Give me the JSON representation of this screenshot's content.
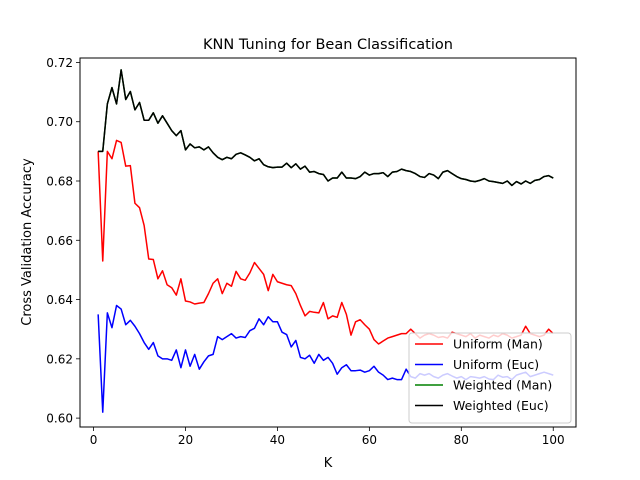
{
  "chart_data": {
    "type": "line",
    "title": "KNN Tuning for Bean Classification",
    "xlabel": "K",
    "ylabel": "Cross Validation Accuracy",
    "xlim": [
      -2.95,
      104.95
    ],
    "ylim": [
      0.597,
      0.7215
    ],
    "xticks": [
      0,
      20,
      40,
      60,
      80,
      100
    ],
    "yticks": [
      0.6,
      0.62,
      0.64,
      0.66,
      0.68,
      0.7,
      0.72
    ],
    "xtick_labels": [
      "0",
      "20",
      "40",
      "60",
      "80",
      "100"
    ],
    "ytick_labels": [
      "0.60",
      "0.62",
      "0.64",
      "0.66",
      "0.68",
      "0.70",
      "0.72"
    ],
    "grid": false,
    "legend_position": "lower-right",
    "x": [
      1,
      2,
      3,
      4,
      5,
      6,
      7,
      8,
      9,
      10,
      11,
      12,
      13,
      14,
      15,
      16,
      17,
      18,
      19,
      20,
      21,
      22,
      23,
      24,
      25,
      26,
      27,
      28,
      29,
      30,
      31,
      32,
      33,
      34,
      35,
      36,
      37,
      38,
      39,
      40,
      41,
      42,
      43,
      44,
      45,
      46,
      47,
      48,
      49,
      50,
      51,
      52,
      53,
      54,
      55,
      56,
      57,
      58,
      59,
      60,
      61,
      62,
      63,
      64,
      65,
      66,
      67,
      68,
      69,
      70,
      71,
      72,
      73,
      74,
      75,
      76,
      77,
      78,
      79,
      80,
      81,
      82,
      83,
      84,
      85,
      86,
      87,
      88,
      89,
      90,
      91,
      92,
      93,
      94,
      95,
      96,
      97,
      98,
      99,
      100
    ],
    "series": [
      {
        "name": "Uniform (Man)",
        "color": "#ff0000",
        "values": [
          0.69,
          0.653,
          0.69,
          0.6875,
          0.6937,
          0.693,
          0.685,
          0.6852,
          0.6725,
          0.671,
          0.665,
          0.6537,
          0.6535,
          0.647,
          0.6497,
          0.645,
          0.644,
          0.6415,
          0.647,
          0.6395,
          0.6392,
          0.6385,
          0.6388,
          0.639,
          0.642,
          0.6455,
          0.647,
          0.642,
          0.6455,
          0.6445,
          0.6495,
          0.647,
          0.6465,
          0.649,
          0.6525,
          0.6505,
          0.6485,
          0.643,
          0.6485,
          0.646,
          0.6455,
          0.645,
          0.6447,
          0.642,
          0.638,
          0.6345,
          0.636,
          0.6357,
          0.6355,
          0.639,
          0.6335,
          0.6345,
          0.634,
          0.639,
          0.635,
          0.628,
          0.6325,
          0.6332,
          0.6315,
          0.63,
          0.6265,
          0.625,
          0.626,
          0.627,
          0.6275,
          0.628,
          0.6285,
          0.6285,
          0.63,
          0.6285,
          0.627,
          0.628,
          0.6285,
          0.628,
          0.6272,
          0.6275,
          0.627,
          0.629,
          0.6285,
          0.628,
          0.6275,
          0.6285,
          0.627,
          0.628,
          0.6275,
          0.627,
          0.628,
          0.6275,
          0.6285,
          0.628,
          0.627,
          0.6275,
          0.628,
          0.631,
          0.6285,
          0.628,
          0.6275,
          0.628,
          0.63,
          0.6285
        ]
      },
      {
        "name": "Uniform (Euc)",
        "color": "#0000ff",
        "values": [
          0.635,
          0.602,
          0.6355,
          0.6305,
          0.638,
          0.6368,
          0.6315,
          0.633,
          0.631,
          0.6285,
          0.6255,
          0.6232,
          0.6255,
          0.621,
          0.62,
          0.62,
          0.6195,
          0.623,
          0.617,
          0.623,
          0.6175,
          0.6215,
          0.6165,
          0.619,
          0.621,
          0.6215,
          0.6275,
          0.6265,
          0.6275,
          0.6285,
          0.627,
          0.6275,
          0.6272,
          0.6295,
          0.6303,
          0.6335,
          0.6315,
          0.6342,
          0.6325,
          0.6325,
          0.629,
          0.6282,
          0.624,
          0.6262,
          0.6205,
          0.62,
          0.6212,
          0.6185,
          0.6215,
          0.6195,
          0.6205,
          0.6185,
          0.6148,
          0.617,
          0.618,
          0.616,
          0.616,
          0.6162,
          0.6155,
          0.616,
          0.6175,
          0.6155,
          0.6145,
          0.613,
          0.6135,
          0.613,
          0.613,
          0.6165,
          0.614,
          0.6135,
          0.615,
          0.6145,
          0.615,
          0.614,
          0.6135,
          0.6145,
          0.615,
          0.6142,
          0.6135,
          0.614,
          0.613,
          0.614,
          0.6138,
          0.6135,
          0.614,
          0.6132,
          0.613,
          0.6145,
          0.6138,
          0.614,
          0.613,
          0.6145,
          0.615,
          0.6155,
          0.614,
          0.6145,
          0.615,
          0.6155,
          0.615,
          0.6145
        ]
      },
      {
        "name": "Weighted (Man)",
        "color": "#008000",
        "values": [
          0.69,
          0.69,
          0.706,
          0.7115,
          0.706,
          0.7175,
          0.7075,
          0.7102,
          0.704,
          0.7065,
          0.7005,
          0.7005,
          0.703,
          0.6995,
          0.702,
          0.6995,
          0.697,
          0.6953,
          0.697,
          0.6905,
          0.6925,
          0.6912,
          0.6915,
          0.6905,
          0.6915,
          0.6895,
          0.688,
          0.6872,
          0.688,
          0.6875,
          0.689,
          0.6895,
          0.6888,
          0.688,
          0.6868,
          0.6875,
          0.6855,
          0.6848,
          0.6845,
          0.6847,
          0.6847,
          0.686,
          0.6845,
          0.6858,
          0.684,
          0.685,
          0.683,
          0.6832,
          0.6825,
          0.6822,
          0.68,
          0.681,
          0.681,
          0.683,
          0.681,
          0.681,
          0.6808,
          0.6815,
          0.683,
          0.682,
          0.6825,
          0.6825,
          0.6828,
          0.6815,
          0.683,
          0.6832,
          0.684,
          0.6835,
          0.6832,
          0.6825,
          0.6815,
          0.6812,
          0.6825,
          0.682,
          0.6808,
          0.683,
          0.6835,
          0.6825,
          0.6815,
          0.6808,
          0.6805,
          0.68,
          0.6798,
          0.6802,
          0.6808,
          0.68,
          0.6798,
          0.6795,
          0.6792,
          0.68,
          0.6785,
          0.6798,
          0.679,
          0.68,
          0.6792,
          0.6802,
          0.6805,
          0.6815,
          0.6818,
          0.681
        ]
      },
      {
        "name": "Weighted (Euc)",
        "color": "#000000",
        "values": [
          0.69,
          0.69,
          0.706,
          0.7115,
          0.706,
          0.7175,
          0.7075,
          0.7102,
          0.704,
          0.7065,
          0.7005,
          0.7005,
          0.703,
          0.6995,
          0.702,
          0.6995,
          0.697,
          0.6953,
          0.697,
          0.6905,
          0.6925,
          0.6912,
          0.6915,
          0.6905,
          0.6915,
          0.6895,
          0.688,
          0.6872,
          0.688,
          0.6875,
          0.689,
          0.6895,
          0.6888,
          0.688,
          0.6868,
          0.6875,
          0.6855,
          0.6848,
          0.6845,
          0.6847,
          0.6847,
          0.686,
          0.6845,
          0.6858,
          0.684,
          0.685,
          0.683,
          0.6832,
          0.6825,
          0.6822,
          0.68,
          0.681,
          0.681,
          0.683,
          0.681,
          0.681,
          0.6808,
          0.6815,
          0.683,
          0.682,
          0.6825,
          0.6825,
          0.6828,
          0.6815,
          0.683,
          0.6832,
          0.684,
          0.6835,
          0.6832,
          0.6825,
          0.6815,
          0.6812,
          0.6825,
          0.682,
          0.6808,
          0.683,
          0.6835,
          0.6825,
          0.6815,
          0.6808,
          0.6805,
          0.68,
          0.6798,
          0.6802,
          0.6808,
          0.68,
          0.6798,
          0.6795,
          0.6792,
          0.68,
          0.6785,
          0.6798,
          0.679,
          0.68,
          0.6792,
          0.6802,
          0.6805,
          0.6815,
          0.6818,
          0.681
        ]
      }
    ]
  }
}
